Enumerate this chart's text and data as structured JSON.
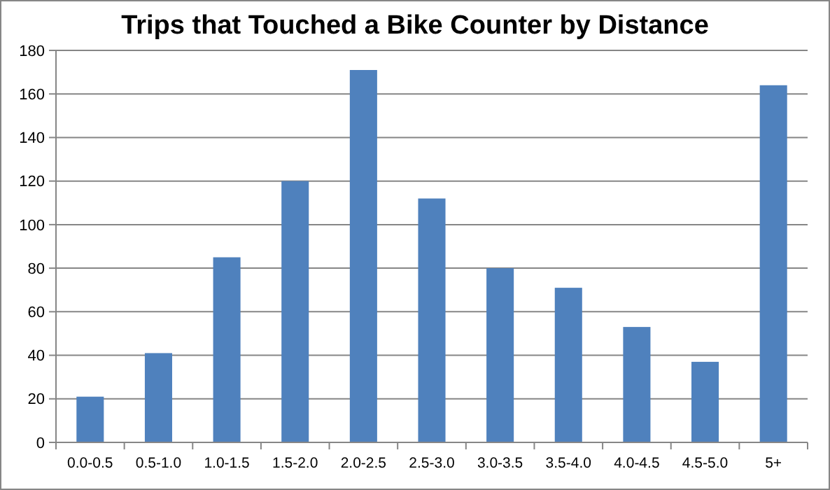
{
  "chart_data": {
    "type": "bar",
    "title": "Trips that Touched a Bike Counter by Distance",
    "categories": [
      "0.0-0.5",
      "0.5-1.0",
      "1.0-1.5",
      "1.5-2.0",
      "2.0-2.5",
      "2.5-3.0",
      "3.0-3.5",
      "3.5-4.0",
      "4.0-4.5",
      "4.5-5.0",
      "5+"
    ],
    "values": [
      21,
      41,
      85,
      120,
      171,
      112,
      80,
      71,
      53,
      37,
      164
    ],
    "color": "#4f81bd",
    "ylim": [
      0,
      180
    ],
    "yticks": [
      0,
      20,
      40,
      60,
      80,
      100,
      120,
      140,
      160,
      180
    ],
    "grid": "y"
  }
}
